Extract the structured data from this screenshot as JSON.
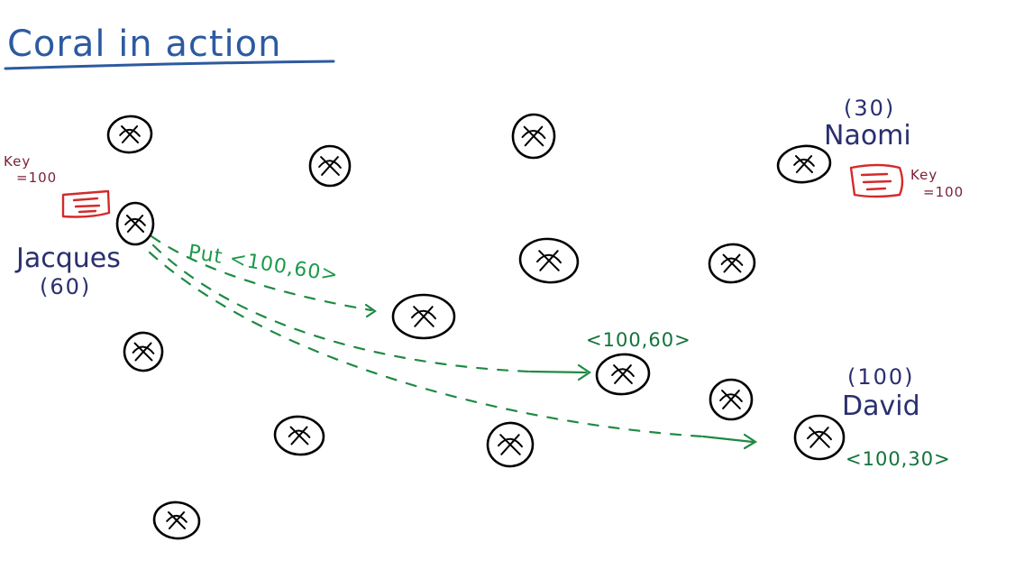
{
  "title": "Coral in action",
  "nodes": {
    "jacques": {
      "name": "Jacques",
      "value": "(60)"
    },
    "naomi": {
      "name": "Naomi",
      "value": "(30)"
    },
    "david": {
      "name": "David",
      "value": "(100)"
    }
  },
  "keys": {
    "jacques_key": {
      "line1": "Key",
      "line2": "=100"
    },
    "naomi_key": {
      "line1": "Key",
      "line2": "=100"
    }
  },
  "messages": {
    "put": "Put <100,60>",
    "middle_value": "<100,60>",
    "david_value": "<100,30>"
  },
  "colors": {
    "title": "#2d5aa0",
    "names": "#2a2f6e",
    "keys": "#7a1f35",
    "key_doc": "#d42a2a",
    "routes": "#1f8a44"
  },
  "icons": {
    "node": "circled-x-node-icon",
    "key": "document-icon"
  }
}
